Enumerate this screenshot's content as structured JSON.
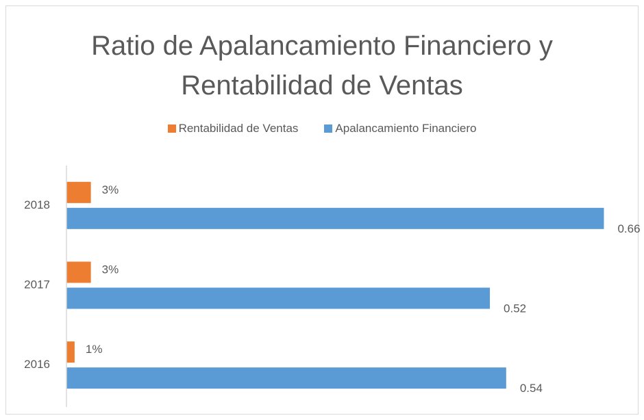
{
  "chart_data": {
    "type": "hbar",
    "title": "Ratio de Apalancamiento Financiero y Rentabilidad de Ventas",
    "categories": [
      "2016",
      "2017",
      "2018"
    ],
    "series": [
      {
        "name": "Rentabilidad de Ventas",
        "color": "#ed7d31",
        "values": [
          0.01,
          0.03,
          0.03
        ],
        "value_labels": [
          "1%",
          "3%",
          "3%"
        ]
      },
      {
        "name": "Apalancamiento Financiero",
        "color": "#5b9bd5",
        "values": [
          0.54,
          0.52,
          0.66
        ]
      }
    ],
    "xlim": [
      0,
      0.7
    ],
    "legend": "top"
  }
}
